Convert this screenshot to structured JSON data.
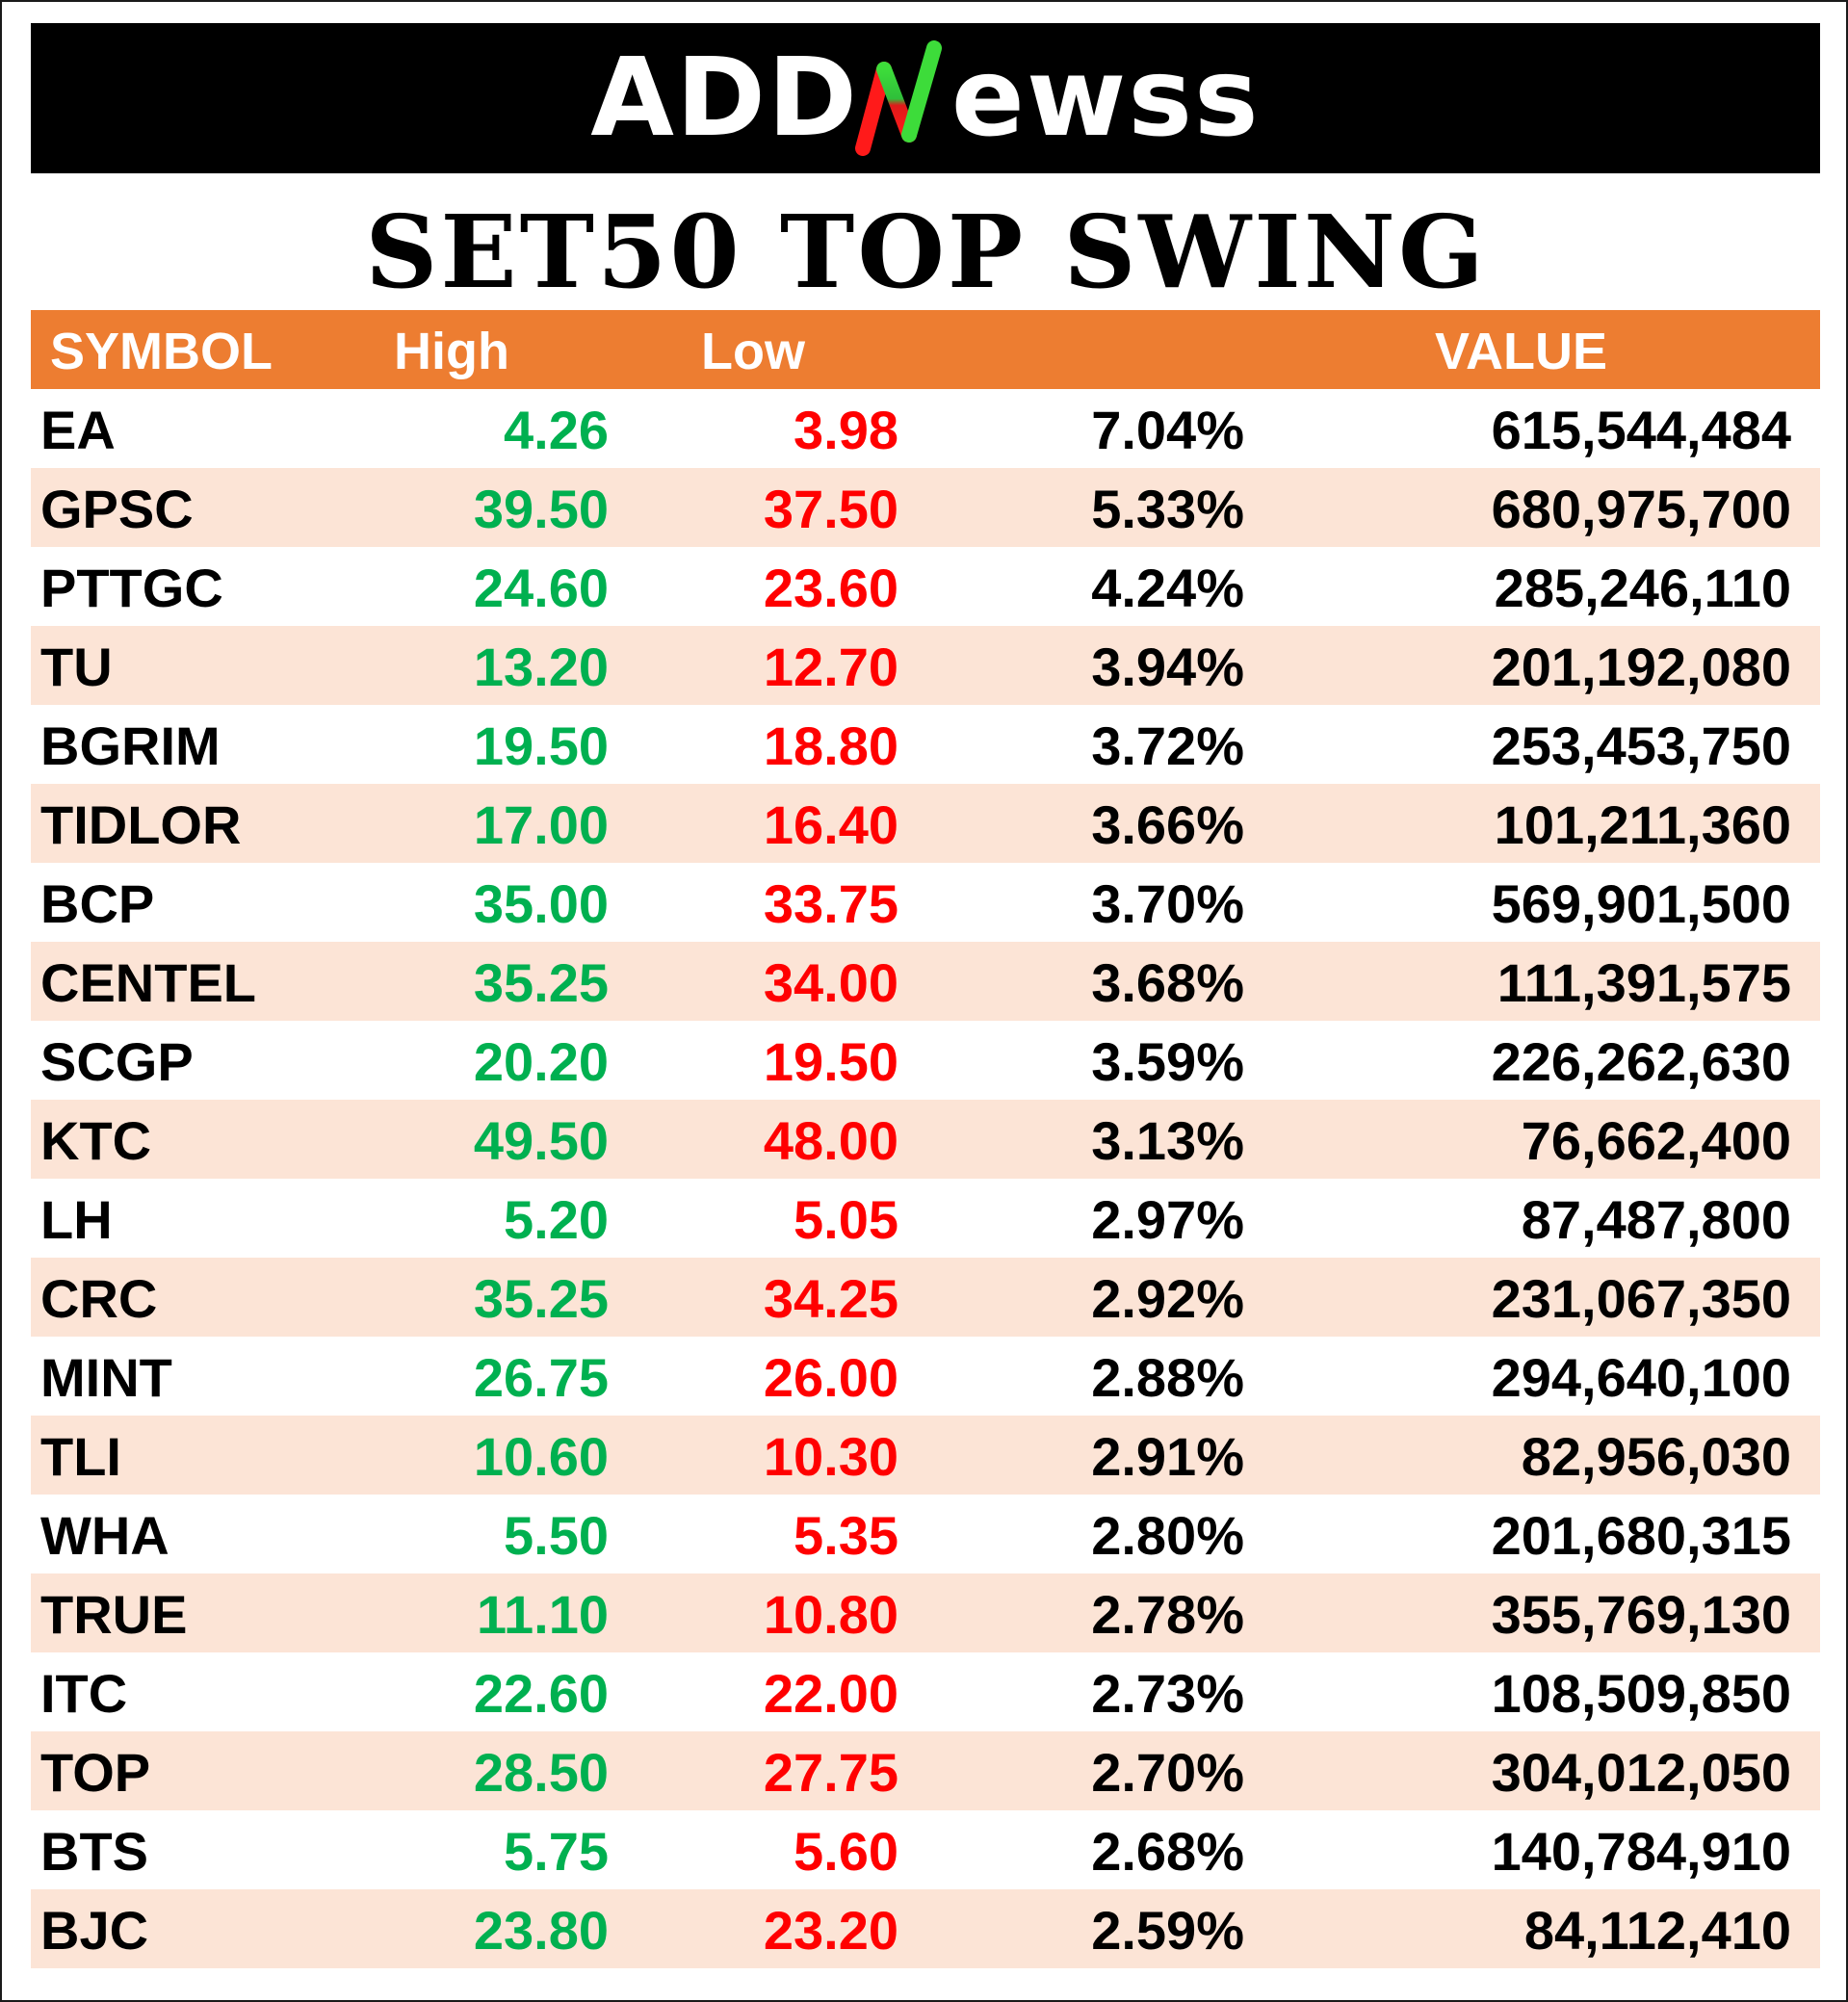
{
  "brand": {
    "logo_prefix": "ADD",
    "logo_suffix": "ewss",
    "mark_icon": "red-green-n-mark",
    "accent_green": "#00b050",
    "accent_red": "#ff0000"
  },
  "title": "SET50 TOP SWING",
  "table": {
    "header_color": "#ed7d31",
    "alt_row_color": "#fce4d6",
    "headers": {
      "symbol": "SYMBOL",
      "high": "High",
      "low": "Low",
      "value": "VALUE"
    },
    "rows": [
      {
        "symbol": "EA",
        "high": "4.26",
        "low": "3.98",
        "pct": "7.04%",
        "value": "615,544,484"
      },
      {
        "symbol": "GPSC",
        "high": "39.50",
        "low": "37.50",
        "pct": "5.33%",
        "value": "680,975,700"
      },
      {
        "symbol": "PTTGC",
        "high": "24.60",
        "low": "23.60",
        "pct": "4.24%",
        "value": "285,246,110"
      },
      {
        "symbol": "TU",
        "high": "13.20",
        "low": "12.70",
        "pct": "3.94%",
        "value": "201,192,080"
      },
      {
        "symbol": "BGRIM",
        "high": "19.50",
        "low": "18.80",
        "pct": "3.72%",
        "value": "253,453,750"
      },
      {
        "symbol": "TIDLOR",
        "high": "17.00",
        "low": "16.40",
        "pct": "3.66%",
        "value": "101,211,360"
      },
      {
        "symbol": "BCP",
        "high": "35.00",
        "low": "33.75",
        "pct": "3.70%",
        "value": "569,901,500"
      },
      {
        "symbol": "CENTEL",
        "high": "35.25",
        "low": "34.00",
        "pct": "3.68%",
        "value": "111,391,575"
      },
      {
        "symbol": "SCGP",
        "high": "20.20",
        "low": "19.50",
        "pct": "3.59%",
        "value": "226,262,630"
      },
      {
        "symbol": "KTC",
        "high": "49.50",
        "low": "48.00",
        "pct": "3.13%",
        "value": "76,662,400"
      },
      {
        "symbol": "LH",
        "high": "5.20",
        "low": "5.05",
        "pct": "2.97%",
        "value": "87,487,800"
      },
      {
        "symbol": "CRC",
        "high": "35.25",
        "low": "34.25",
        "pct": "2.92%",
        "value": "231,067,350"
      },
      {
        "symbol": "MINT",
        "high": "26.75",
        "low": "26.00",
        "pct": "2.88%",
        "value": "294,640,100"
      },
      {
        "symbol": "TLI",
        "high": "10.60",
        "low": "10.30",
        "pct": "2.91%",
        "value": "82,956,030"
      },
      {
        "symbol": "WHA",
        "high": "5.50",
        "low": "5.35",
        "pct": "2.80%",
        "value": "201,680,315"
      },
      {
        "symbol": "TRUE",
        "high": "11.10",
        "low": "10.80",
        "pct": "2.78%",
        "value": "355,769,130"
      },
      {
        "symbol": "ITC",
        "high": "22.60",
        "low": "22.00",
        "pct": "2.73%",
        "value": "108,509,850"
      },
      {
        "symbol": "TOP",
        "high": "28.50",
        "low": "27.75",
        "pct": "2.70%",
        "value": "304,012,050"
      },
      {
        "symbol": "BTS",
        "high": "5.75",
        "low": "5.60",
        "pct": "2.68%",
        "value": "140,784,910"
      },
      {
        "symbol": "BJC",
        "high": "23.80",
        "low": "23.20",
        "pct": "2.59%",
        "value": "84,112,410"
      }
    ]
  }
}
